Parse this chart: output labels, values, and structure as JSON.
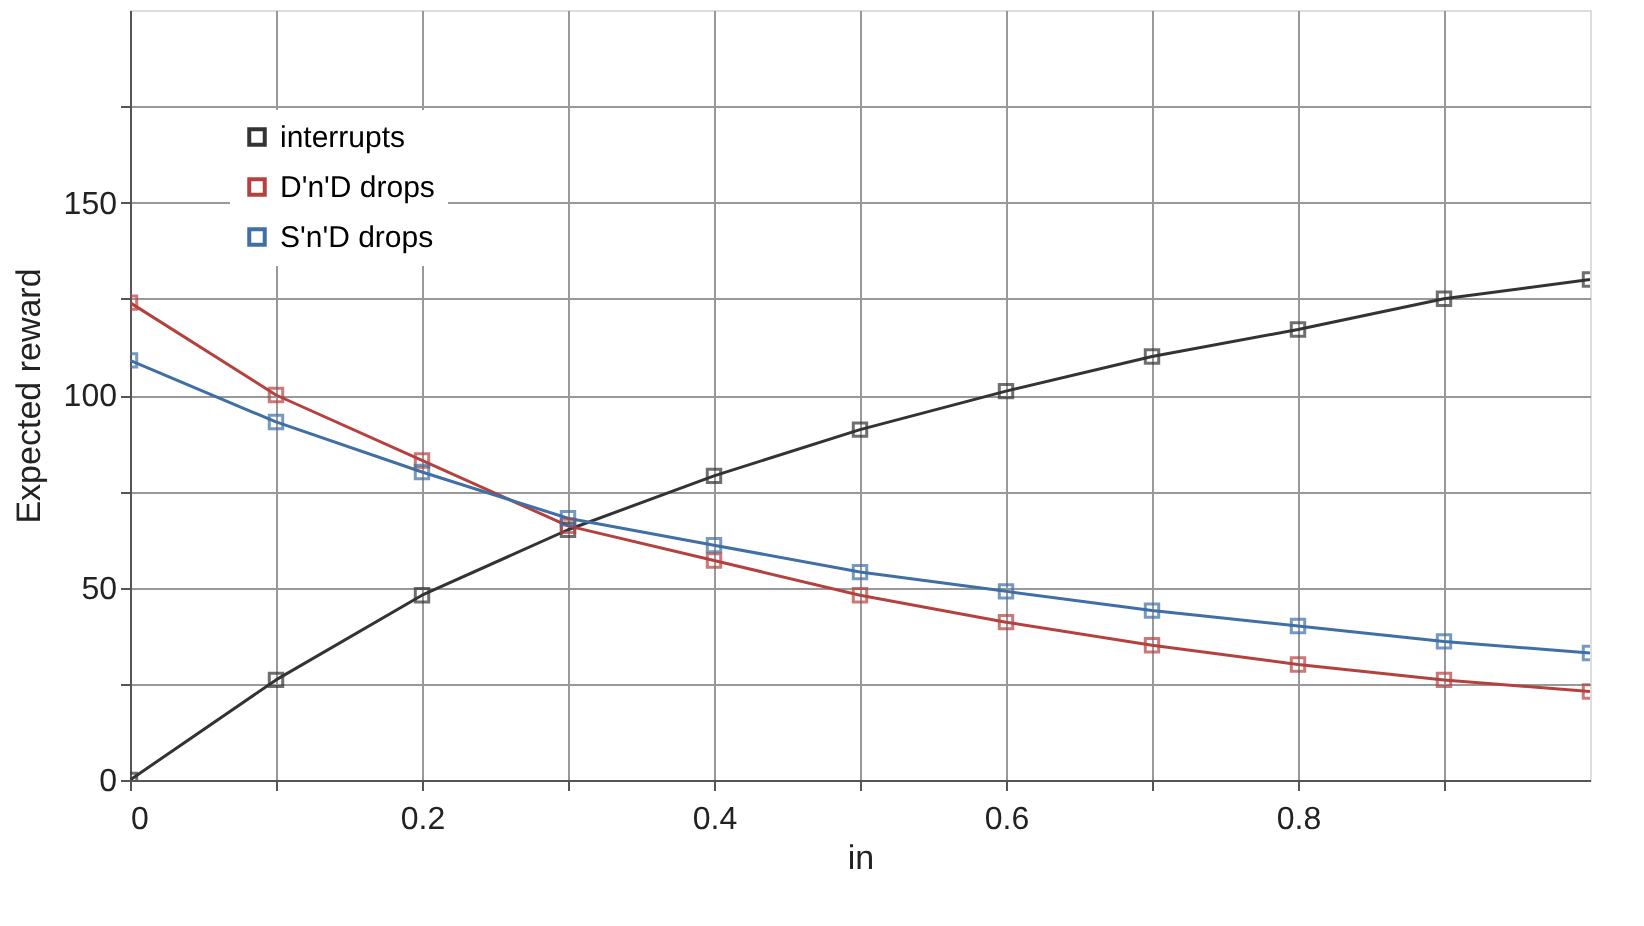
{
  "chart_data": {
    "type": "line",
    "xlabel": "in",
    "ylabel": "Expected reward",
    "x": [
      0,
      0.1,
      0.2,
      0.3,
      0.4,
      0.5,
      0.6,
      0.7,
      0.8,
      0.9,
      1.0
    ],
    "series": [
      {
        "name": "interrupts",
        "color": "#333333",
        "values": [
          0,
          26,
          48,
          65,
          79,
          91,
          101,
          110,
          117,
          125,
          130
        ]
      },
      {
        "name": "D'n'D drops",
        "color": "#b5413f",
        "values": [
          124,
          100,
          83,
          66,
          57,
          48,
          41,
          35,
          30,
          26,
          23
        ]
      },
      {
        "name": "S'n'D drops",
        "color": "#3f6fa5",
        "values": [
          109,
          93,
          80,
          68,
          61,
          54,
          49,
          44,
          40,
          36,
          33
        ]
      }
    ],
    "xlim": [
      0,
      1
    ],
    "ylim": [
      0,
      200
    ],
    "xticks": [
      0,
      {
        "value": 0.1,
        "label": null
      },
      0.2,
      {
        "value": 0.3,
        "label": null
      },
      0.4,
      {
        "value": 0.5,
        "label": null
      },
      0.6,
      {
        "value": 0.7,
        "label": null
      },
      0.8,
      {
        "value": 0.9,
        "label": null
      }
    ],
    "yticks": [
      0,
      {
        "value": 25,
        "label": null
      },
      50,
      {
        "value": 75,
        "label": null
      },
      100,
      {
        "value": 125,
        "label": null
      },
      150,
      {
        "value": 175,
        "label": null
      }
    ],
    "grid": true,
    "legend": "top left",
    "marker": "square",
    "line_style": "solid"
  }
}
